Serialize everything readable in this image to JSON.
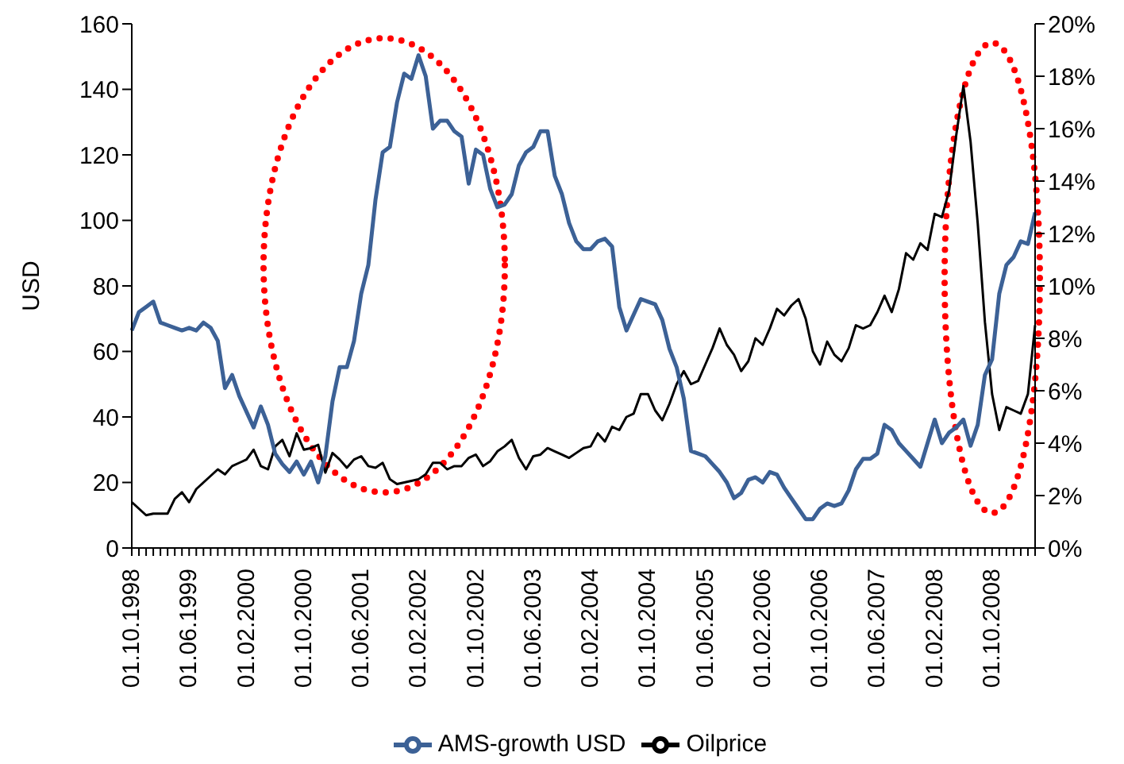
{
  "chart_data": {
    "type": "line",
    "ylabel": "USD",
    "categories": [
      "01.10.1998",
      null,
      null,
      null,
      null,
      null,
      null,
      null,
      "01.06.1999",
      null,
      null,
      null,
      null,
      null,
      null,
      null,
      "01.02.2000",
      null,
      null,
      null,
      null,
      null,
      null,
      null,
      "01.10.2000",
      null,
      null,
      null,
      null,
      null,
      null,
      null,
      "01.06.2001",
      null,
      null,
      null,
      null,
      null,
      null,
      null,
      "01.02.2002",
      null,
      null,
      null,
      null,
      null,
      null,
      null,
      "01.10.2002",
      null,
      null,
      null,
      null,
      null,
      null,
      null,
      "01.06.2003",
      null,
      null,
      null,
      null,
      null,
      null,
      null,
      "01.02.2004",
      null,
      null,
      null,
      null,
      null,
      null,
      null,
      "01.10.2004",
      null,
      null,
      null,
      null,
      null,
      null,
      null,
      "01.06.2005",
      null,
      null,
      null,
      null,
      null,
      null,
      null,
      "01.02.2006",
      null,
      null,
      null,
      null,
      null,
      null,
      null,
      "01.10.2006",
      null,
      null,
      null,
      null,
      null,
      null,
      null,
      "01.06.2007",
      null,
      null,
      null,
      null,
      null,
      null,
      null,
      "01.02.2008",
      null,
      null,
      null,
      null,
      null,
      null,
      null,
      "01.10.2008",
      null,
      null,
      null,
      null,
      null,
      null
    ],
    "series": [
      {
        "name": "Oilprice",
        "color": "#000000",
        "axis": "y",
        "values": [
          14,
          12,
          10,
          10.5,
          10.5,
          10.5,
          15,
          17,
          14,
          18,
          20,
          22,
          24,
          22.5,
          25,
          26,
          27,
          30,
          25,
          24,
          31,
          33,
          28,
          35,
          30,
          30.5,
          31.5,
          23,
          29,
          27,
          24.5,
          27,
          28,
          25,
          24.5,
          26,
          21,
          19.5,
          20,
          20.5,
          21,
          22.5,
          26,
          26,
          24,
          25,
          25,
          27.5,
          28.5,
          25,
          26.5,
          29.5,
          31,
          33,
          27.5,
          24,
          28,
          28.5,
          30.5,
          29.5,
          28.5,
          27.5,
          29,
          30.5,
          31,
          35,
          32.5,
          37,
          36,
          40,
          41,
          47,
          47,
          42,
          39,
          44,
          50,
          54,
          50,
          51,
          56,
          61,
          67,
          62,
          59,
          54,
          57,
          64,
          62,
          67,
          73,
          71,
          74,
          76,
          70,
          60,
          56,
          63,
          59,
          57,
          61,
          68,
          67,
          68,
          72,
          77,
          72,
          79,
          90,
          88,
          93,
          91,
          102,
          101,
          109,
          126,
          141,
          124,
          99,
          69,
          47,
          36,
          43,
          42,
          41,
          47,
          68
        ]
      },
      {
        "name": "AMS-growth USD",
        "color": "#3c6196",
        "axis": "y2",
        "values": [
          8.3,
          9.0,
          9.2,
          9.4,
          8.6,
          8.5,
          8.4,
          8.3,
          8.4,
          8.3,
          8.6,
          8.4,
          7.9,
          6.1,
          6.6,
          5.8,
          5.2,
          4.6,
          5.4,
          4.7,
          3.6,
          3.2,
          2.9,
          3.3,
          2.8,
          3.3,
          2.5,
          3.5,
          5.6,
          6.9,
          6.9,
          7.9,
          9.7,
          10.8,
          13.3,
          15.1,
          15.3,
          17.0,
          18.1,
          17.9,
          18.8,
          18.0,
          16.0,
          16.3,
          16.3,
          15.9,
          15.7,
          13.9,
          15.2,
          15.0,
          13.7,
          13.0,
          13.1,
          13.5,
          14.6,
          15.1,
          15.3,
          15.9,
          15.9,
          14.2,
          13.5,
          12.4,
          11.7,
          11.4,
          11.4,
          11.7,
          11.8,
          11.5,
          9.2,
          8.3,
          8.9,
          9.5,
          9.4,
          9.3,
          8.7,
          7.6,
          6.9,
          5.7,
          3.7,
          3.6,
          3.5,
          3.2,
          2.9,
          2.5,
          1.9,
          2.1,
          2.6,
          2.7,
          2.5,
          2.9,
          2.8,
          2.3,
          1.9,
          1.5,
          1.1,
          1.1,
          1.5,
          1.7,
          1.6,
          1.7,
          2.2,
          3.0,
          3.4,
          3.4,
          3.6,
          4.7,
          4.5,
          4.0,
          3.7,
          3.4,
          3.1,
          4.0,
          4.9,
          4.0,
          4.4,
          4.6,
          4.9,
          3.9,
          4.7,
          6.6,
          7.2,
          9.7,
          10.8,
          11.1,
          11.7,
          11.6,
          12.8
        ]
      }
    ],
    "ylim": [
      0,
      160
    ],
    "yticks": [
      0,
      20,
      40,
      60,
      80,
      100,
      120,
      140,
      160
    ],
    "y2lim": [
      0,
      20
    ],
    "y2ticks": [
      {
        "value": 0,
        "label": "0%"
      },
      {
        "value": 2,
        "label": "2%"
      },
      {
        "value": 4,
        "label": "4%"
      },
      {
        "value": 6,
        "label": "6%"
      },
      {
        "value": 8,
        "label": "8%"
      },
      {
        "value": 10,
        "label": "10%"
      },
      {
        "value": 12,
        "label": "12%"
      },
      {
        "value": 14,
        "label": "14%"
      },
      {
        "value": 16,
        "label": "16%"
      },
      {
        "value": 18,
        "label": "18%"
      },
      {
        "value": 20,
        "label": "20%"
      }
    ],
    "legend": "bottom",
    "grid": false,
    "marker": "none",
    "line_style": "solid"
  }
}
